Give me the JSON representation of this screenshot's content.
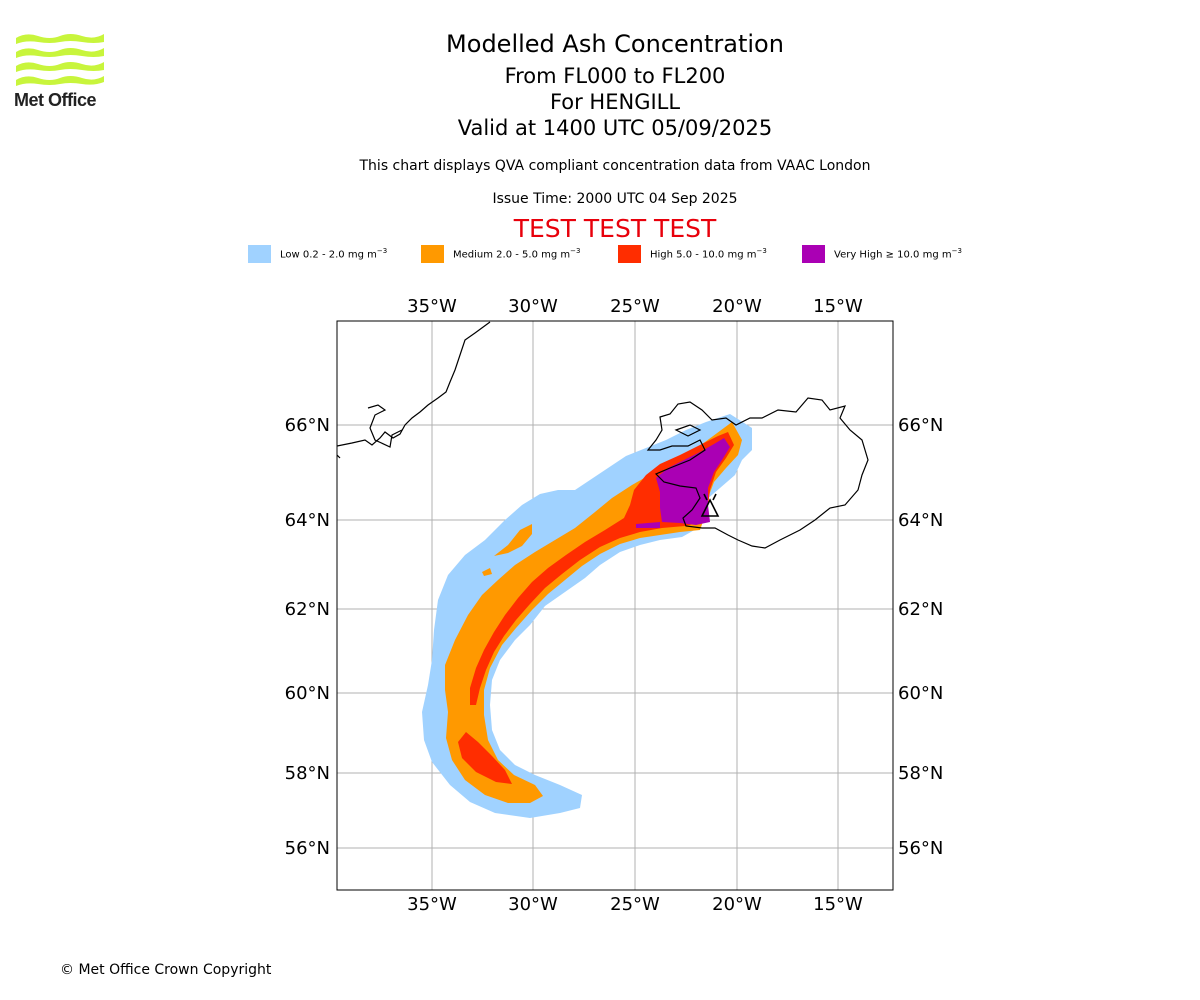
{
  "logo": {
    "text": "Met Office",
    "color": "#c8f53c"
  },
  "header": {
    "title": "Modelled Ash Concentration",
    "levels": "From FL000 to FL200",
    "volcano": "For HENGILL",
    "valid": "Valid at 1400 UTC 05/09/2025",
    "description": "This chart displays QVA compliant concentration data from VAAC London",
    "issue": "Issue Time: 2000 UTC 04 Sep 2025",
    "test_banner": "TEST TEST TEST"
  },
  "legend": [
    {
      "label": "Low 0.2 - 2.0 mg m",
      "exp": "−3",
      "color": "#a0d2ff"
    },
    {
      "label": "Medium 2.0 - 5.0 mg m",
      "exp": "−3",
      "color": "#ff9900"
    },
    {
      "label": "High 5.0 - 10.0 mg m",
      "exp": "−3",
      "color": "#ff2d00"
    },
    {
      "label": "Very High  ≥  10.0 mg m",
      "exp": "−3",
      "color": "#aa00b4"
    }
  ],
  "map": {
    "lon_ticks": [
      "35°W",
      "30°W",
      "25°W",
      "20°W",
      "15°W"
    ],
    "lat_ticks": [
      "66°N",
      "64°N",
      "62°N",
      "60°N",
      "58°N",
      "56°N"
    ],
    "gridlines": true,
    "source_marker": "volcano-marker"
  },
  "footer": {
    "copyright": "© Met Office Crown Copyright"
  }
}
